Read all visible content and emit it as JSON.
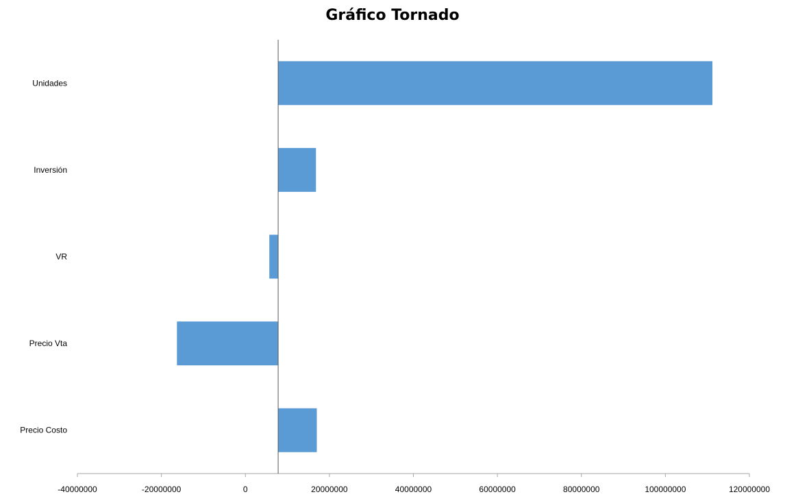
{
  "chart_data": {
    "type": "bar",
    "orientation": "horizontal",
    "title": "Gráfico Tornado",
    "categories": [
      "Unidades",
      "Inversión",
      "VR",
      "Precio Vta",
      "Precio Costo"
    ],
    "bar_start": 7800000,
    "values": [
      111200000,
      16800000,
      5700000,
      -16300000,
      17000000
    ],
    "xlim": [
      -40000000,
      120000000
    ],
    "x_ticks": [
      -40000000,
      -20000000,
      0,
      20000000,
      40000000,
      60000000,
      80000000,
      100000000,
      120000000
    ],
    "x_tick_labels": [
      "-40000000",
      "-20000000",
      "0",
      "20000000",
      "40000000",
      "60000000",
      "80000000",
      "100000000",
      "120000000"
    ],
    "grid": false,
    "legend": "none",
    "bar_color": "#5B9BD5"
  }
}
